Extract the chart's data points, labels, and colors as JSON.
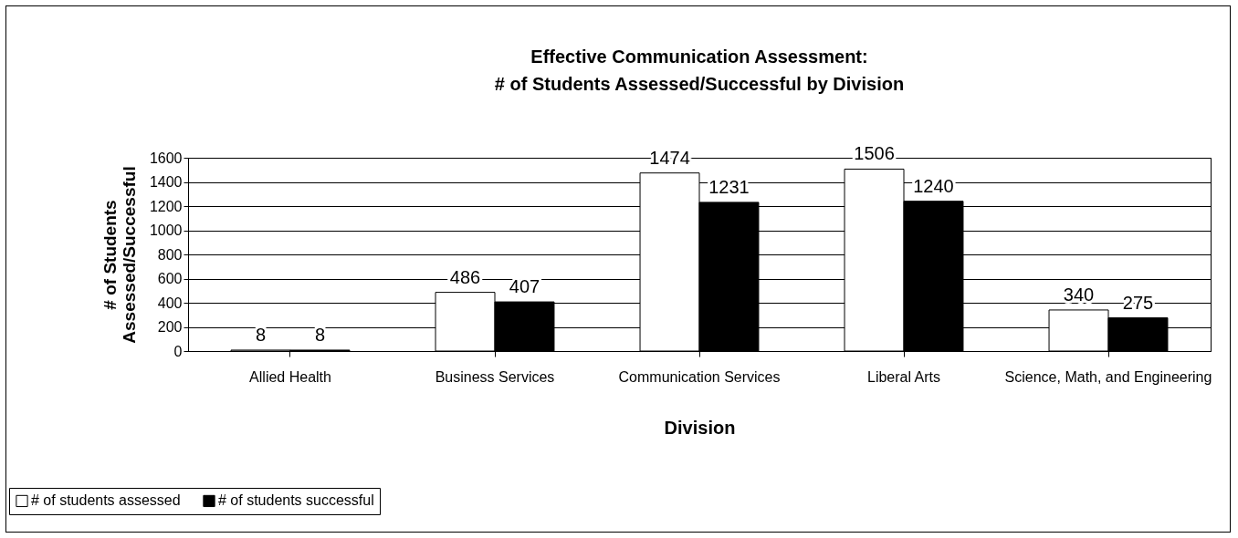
{
  "chart_data": {
    "type": "bar",
    "title": "Effective Communication Assessment:\n# of Students Assessed/Successful by Division",
    "xlabel": "Division",
    "ylabel": "# of Students Assessed/Successful",
    "categories": [
      "Allied Health",
      "Business Services",
      "Communication Services",
      "Liberal Arts",
      "Science, Math, and Engineering"
    ],
    "series": [
      {
        "name": "# of students assessed",
        "color": "#ffffff",
        "values": [
          8,
          486,
          1474,
          1506,
          340
        ]
      },
      {
        "name": "# of students successful",
        "color": "#000000",
        "values": [
          8,
          407,
          1231,
          1240,
          275
        ]
      }
    ],
    "ylim": [
      0,
      1600
    ],
    "yticks": [
      0,
      200,
      400,
      600,
      800,
      1000,
      1200,
      1400,
      1600
    ],
    "grid": "y",
    "legend": "bottom left",
    "data_labels": true
  }
}
